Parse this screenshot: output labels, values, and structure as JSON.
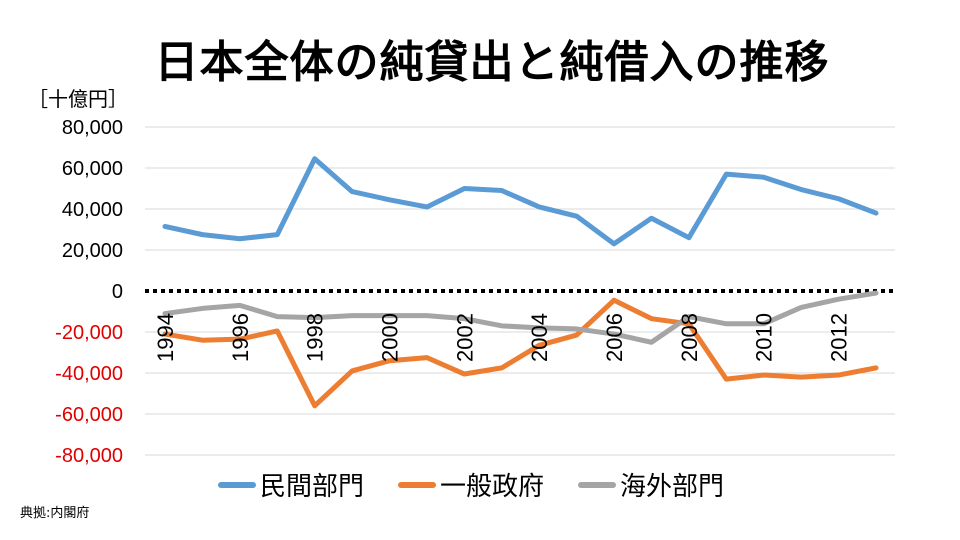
{
  "chart_data": {
    "type": "line",
    "title": "日本全体の純貸出と純借入の推移",
    "unit_label": "［十億円］",
    "source": "典拠:内閣府",
    "ylim": [
      -80000,
      80000
    ],
    "y_ticks": [
      80000,
      60000,
      40000,
      20000,
      0,
      -20000,
      -40000,
      -60000,
      -80000
    ],
    "y_tick_labels": [
      "80,000",
      "60,000",
      "40,000",
      "20,000",
      "0",
      "-20,000",
      "-40,000",
      "-60,000",
      "-80,000"
    ],
    "x": [
      1994,
      1995,
      1996,
      1997,
      1998,
      1999,
      2000,
      2001,
      2002,
      2003,
      2004,
      2005,
      2006,
      2007,
      2008,
      2009,
      2010,
      2011,
      2012,
      2013
    ],
    "x_tick_labels": [
      "1994",
      "1996",
      "1998",
      "2000",
      "2002",
      "2004",
      "2006",
      "2008",
      "2010",
      "2012"
    ],
    "grid": true,
    "legend_position": "bottom",
    "series": [
      {
        "name": "民間部門",
        "color": "#5B9BD5",
        "values": [
          31500,
          27500,
          25500,
          27500,
          64500,
          48500,
          44500,
          41000,
          50000,
          49000,
          41000,
          36500,
          23000,
          35500,
          26000,
          57000,
          55500,
          49500,
          45000,
          38000
        ]
      },
      {
        "name": "一般政府",
        "color": "#ED7D31",
        "values": [
          -21000,
          -24000,
          -23500,
          -19500,
          -56000,
          -39000,
          -34000,
          -32500,
          -40500,
          -37500,
          -26500,
          -21500,
          -4500,
          -13500,
          -16000,
          -43000,
          -41000,
          -42000,
          -41000,
          -37500
        ]
      },
      {
        "name": "海外部門",
        "color": "#A5A5A5",
        "values": [
          -11000,
          -8500,
          -7000,
          -12500,
          -13000,
          -12000,
          -12000,
          -12000,
          -13500,
          -17000,
          -18000,
          -18500,
          -21000,
          -25000,
          -12500,
          -16000,
          -16000,
          -8000,
          -4000,
          -1000
        ]
      }
    ]
  }
}
